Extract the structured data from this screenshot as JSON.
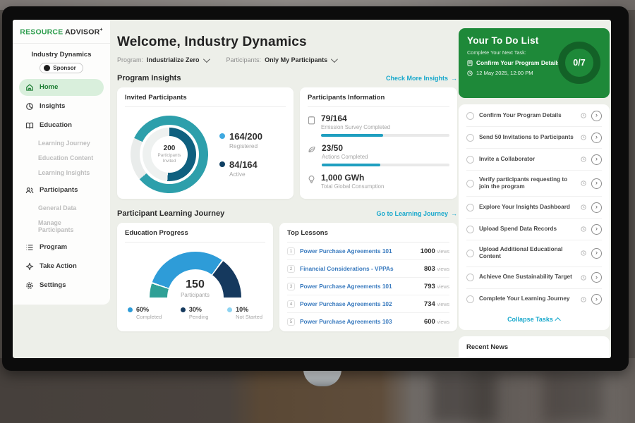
{
  "logo": {
    "part1": "RESOURCE",
    "part2": "ADVISOR",
    "plus": "+"
  },
  "sidebar": {
    "org": "Industry Dynamics",
    "badge": "Sponsor",
    "items": [
      {
        "label": "Home"
      },
      {
        "label": "Insights"
      },
      {
        "label": "Education"
      },
      {
        "label": "Learning Journey"
      },
      {
        "label": "Education Content"
      },
      {
        "label": "Learning Insights"
      },
      {
        "label": "Participants"
      },
      {
        "label": "General Data"
      },
      {
        "label": "Manage Participants"
      },
      {
        "label": "Program"
      },
      {
        "label": "Take Action"
      },
      {
        "label": "Settings"
      }
    ]
  },
  "header": {
    "title": "Welcome, Industry Dynamics",
    "program_label": "Program:",
    "program_value": "Industrialize Zero",
    "participants_label": "Participants:",
    "participants_value": "Only My Participants"
  },
  "insights_section": {
    "title": "Program Insights",
    "link": "Check More Insights",
    "arrow": "→"
  },
  "invited": {
    "title": "Invited Participants",
    "center_value": "200",
    "center_label": "Participants Invited",
    "legend": [
      {
        "value": "164/200",
        "caption": "Registered"
      },
      {
        "value": "84/164",
        "caption": "Active"
      }
    ]
  },
  "participants_info": {
    "title": "Participants Information",
    "rows": [
      {
        "value": "79/164",
        "label": "Emission Survey Completed"
      },
      {
        "value": "23/50",
        "label": "Actions Completed"
      },
      {
        "value": "1,000 GWh",
        "label": "Total Global Consumption"
      }
    ]
  },
  "journey_section": {
    "title": "Participant Learning Journey",
    "link": "Go to Learning Journey",
    "arrow": "→"
  },
  "education_progress": {
    "title": "Education Progress",
    "center_value": "150",
    "center_label": "Participants",
    "legend": [
      {
        "value": "60%",
        "caption": "Completed"
      },
      {
        "value": "30%",
        "caption": "Pending"
      },
      {
        "value": "10%",
        "caption": "Not Started"
      }
    ]
  },
  "top_lessons": {
    "title": "Top Lessons",
    "views_label": "views",
    "items": [
      {
        "rank": "1",
        "title": "Power Purchase Agreements 101",
        "views": "1000"
      },
      {
        "rank": "2",
        "title": "Financial Considerations - VPPAs",
        "views": "803"
      },
      {
        "rank": "3",
        "title": "Power Purchase Agreements 101",
        "views": "793"
      },
      {
        "rank": "4",
        "title": "Power Purchase Agreements 102",
        "views": "734"
      },
      {
        "rank": "5",
        "title": "Power Purchase Agreements 103",
        "views": "600"
      }
    ]
  },
  "todo": {
    "title": "Your To Do List",
    "subtitle": "Complete Your Next Task:",
    "next_task": "Confirm Your Program Details",
    "due": "12 May 2025, 12:00 PM",
    "progress": "0/7",
    "tasks": [
      {
        "label": "Confirm Your Program Details"
      },
      {
        "label": "Send 50 Invitations to Participants"
      },
      {
        "label": "Invite a Collaborator"
      },
      {
        "label": "Verify participants requesting to join the program"
      },
      {
        "label": "Explore Your Insights Dashboard"
      },
      {
        "label": "Upload Spend Data Records"
      },
      {
        "label": "Upload Additional Educational Content"
      },
      {
        "label": "Achieve One Sustainability Target"
      },
      {
        "label": "Complete Your Learning Journey"
      }
    ],
    "collapse": "Collapse Tasks"
  },
  "recent_news": {
    "title": "Recent News"
  },
  "colors": {
    "brand_green": "#2f9e4f",
    "todo_green": "#1e8939",
    "todo_ring": "#136127",
    "teal_link": "#18a8cc",
    "donut_outer": "#2d9fab",
    "donut_inner": "#0f607f",
    "registered_dot": "#3fa9e0",
    "active_dot": "#0e3f62",
    "gauge_completed": "#2e9cd8",
    "gauge_pending": "#15395e",
    "gauge_notstarted_seg": "#2fa096",
    "gauge_notstarted_dot": "#8ed4f2",
    "progress_bar": "#1f9fc0",
    "nav_active_bg": "#d9efdc",
    "nav_active_text": "#1d7c33"
  },
  "chart_data": [
    {
      "type": "pie",
      "subtype": "double-donut",
      "title": "Invited Participants",
      "center": {
        "value": 200,
        "label": "Participants Invited"
      },
      "series": [
        {
          "name": "Registered",
          "value": 164,
          "total": 200,
          "color": "#2d9fab"
        },
        {
          "name": "Active",
          "value": 84,
          "total": 164,
          "color": "#0f607f"
        }
      ]
    },
    {
      "type": "pie",
      "subtype": "half-donut-gauge",
      "title": "Education Progress",
      "center": {
        "value": 150,
        "label": "Participants"
      },
      "slices": [
        {
          "name": "Not Started",
          "value": 10,
          "color": "#2fa096"
        },
        {
          "name": "Completed",
          "value": 60,
          "color": "#2e9cd8"
        },
        {
          "name": "Pending",
          "value": 30,
          "color": "#15395e"
        }
      ]
    },
    {
      "type": "bar",
      "title": "Participants Information",
      "categories": [
        "Emission Survey Completed",
        "Actions Completed"
      ],
      "values": [
        79,
        23
      ],
      "totals": [
        164,
        50
      ],
      "color": "#1f9fc0"
    }
  ]
}
